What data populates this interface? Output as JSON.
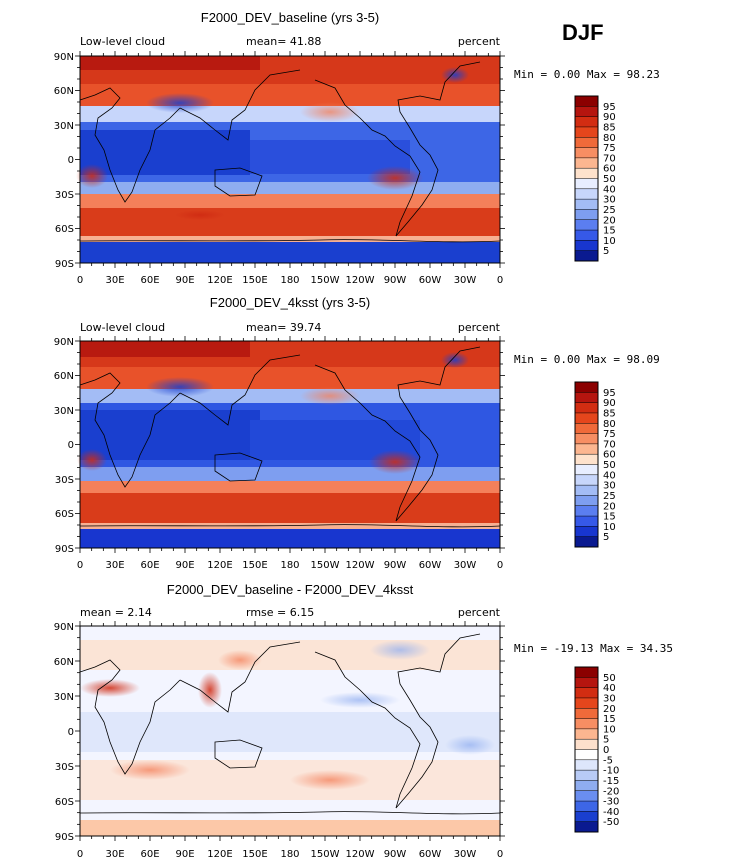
{
  "season": "DJF",
  "chart_data": [
    {
      "type": "heatmap",
      "title": "F2000_DEV_baseline (yrs 3-5)",
      "left_label": "Low-level cloud",
      "stat_text": "mean=  41.88",
      "units": "percent",
      "minmax_text": "Min =   0.00 Max =  98.23",
      "min": 0.0,
      "max": 98.23,
      "mean": 41.88,
      "x_ticks": [
        "0",
        "30E",
        "60E",
        "90E",
        "120E",
        "150E",
        "180",
        "150W",
        "120W",
        "90W",
        "60W",
        "30W",
        "0"
      ],
      "y_ticks": [
        "90N",
        "60N",
        "30N",
        "0",
        "30S",
        "60S",
        "90S"
      ],
      "colorbar_levels": [
        "95",
        "90",
        "85",
        "80",
        "75",
        "70",
        "60",
        "50",
        "40",
        "30",
        "25",
        "20",
        "15",
        "10",
        "5"
      ],
      "colorbar_colors": [
        "#8b0000",
        "#b5150f",
        "#d22d12",
        "#e5461c",
        "#f06a3a",
        "#f78e63",
        "#fcb690",
        "#fee2cc",
        "#e8eeff",
        "#c7d6fb",
        "#a3bcf5",
        "#7e9ef0",
        "#5b7ef0",
        "#3659e8",
        "#1836cf",
        "#0a1a90"
      ],
      "field": "low_cloud_baseline"
    },
    {
      "type": "heatmap",
      "title": "F2000_DEV_4ksst (yrs 3-5)",
      "left_label": "Low-level cloud",
      "stat_text": "mean=  39.74",
      "units": "percent",
      "minmax_text": "Min =   0.00 Max =  98.09",
      "min": 0.0,
      "max": 98.09,
      "mean": 39.74,
      "x_ticks": [
        "0",
        "30E",
        "60E",
        "90E",
        "120E",
        "150E",
        "180",
        "150W",
        "120W",
        "90W",
        "60W",
        "30W",
        "0"
      ],
      "y_ticks": [
        "90N",
        "60N",
        "30N",
        "0",
        "30S",
        "60S",
        "90S"
      ],
      "colorbar_levels": [
        "95",
        "90",
        "85",
        "80",
        "75",
        "70",
        "60",
        "50",
        "40",
        "30",
        "25",
        "20",
        "15",
        "10",
        "5"
      ],
      "colorbar_colors": [
        "#8b0000",
        "#b5150f",
        "#d22d12",
        "#e5461c",
        "#f06a3a",
        "#f78e63",
        "#fcb690",
        "#fee2cc",
        "#e8eeff",
        "#c7d6fb",
        "#a3bcf5",
        "#7e9ef0",
        "#5b7ef0",
        "#3659e8",
        "#1836cf",
        "#0a1a90"
      ],
      "field": "low_cloud_4ksst"
    },
    {
      "type": "heatmap",
      "title": "F2000_DEV_baseline - F2000_DEV_4ksst",
      "left_label": "mean =    2.14",
      "stat_text": "rmse =    6.15",
      "units": "percent",
      "minmax_text": "Min = -19.13 Max =  34.35",
      "min": -19.13,
      "max": 34.35,
      "mean": 2.14,
      "rmse": 6.15,
      "x_ticks": [
        "0",
        "30E",
        "60E",
        "90E",
        "120E",
        "150E",
        "180",
        "150W",
        "120W",
        "90W",
        "60W",
        "30W",
        "0"
      ],
      "y_ticks": [
        "90N",
        "60N",
        "30N",
        "0",
        "30S",
        "60S",
        "90S"
      ],
      "colorbar_levels": [
        "50",
        "40",
        "30",
        "20",
        "15",
        "10",
        "5",
        "0",
        "-5",
        "-10",
        "-15",
        "-20",
        "-30",
        "-40",
        "-50"
      ],
      "colorbar_colors": [
        "#8b0000",
        "#b5150f",
        "#d22d12",
        "#e5461c",
        "#f06a3a",
        "#f78e63",
        "#fcb690",
        "#fde0cc",
        "#ffffff",
        "#dde6fb",
        "#b8cbf6",
        "#8fadf0",
        "#6a8ef0",
        "#3d66e6",
        "#1a3fcf",
        "#0a1a90"
      ],
      "field": "difference"
    }
  ]
}
